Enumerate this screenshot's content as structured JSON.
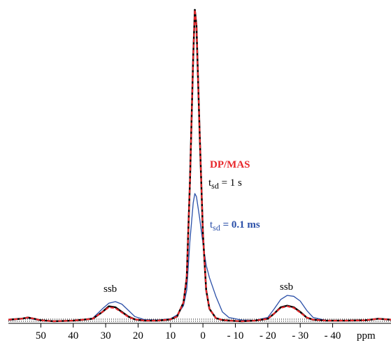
{
  "chart_data": {
    "type": "line",
    "x_label": "ppm",
    "x": [
      60,
      56,
      54,
      52,
      50,
      46,
      40,
      34,
      31,
      29,
      27,
      25,
      23,
      21,
      18,
      14,
      10,
      8,
      6,
      5,
      4,
      3,
      2.5,
      2,
      1,
      0,
      -1,
      -2,
      -4,
      -6,
      -8,
      -12,
      -16,
      -20,
      -22,
      -24,
      -26,
      -28,
      -30,
      -32,
      -34,
      -38,
      -44,
      -50,
      -54,
      -58
    ],
    "series": [
      {
        "key": "blue",
        "name_parts": [
          "t",
          "sd",
          " = 0.1 ms"
        ],
        "color": "#2a4fa8",
        "style": "solid",
        "values": [
          0.3,
          0.8,
          1.0,
          0.6,
          0.3,
          0,
          0.2,
          1.0,
          4,
          5.8,
          6.3,
          5.5,
          3.5,
          1.5,
          0.5,
          0.4,
          0.8,
          2,
          5,
          10,
          26,
          38,
          41,
          40,
          33,
          25,
          18,
          14,
          8,
          3,
          1.2,
          0.4,
          0.3,
          1.2,
          4,
          7,
          8.3,
          8,
          6.5,
          3.5,
          1.2,
          0.3,
          0.2,
          0.3,
          0.8,
          0.5
        ]
      },
      {
        "key": "black",
        "name_parts": [
          "t",
          "sd",
          " = 1 s"
        ],
        "color": "#000000",
        "style": "solid",
        "values": [
          0.5,
          0.8,
          1.2,
          0.8,
          0.3,
          0,
          0.2,
          0.8,
          3,
          4.8,
          4.5,
          3,
          1.5,
          0.6,
          0.2,
          0.2,
          0.6,
          1.5,
          6,
          14,
          45,
          85,
          100,
          95,
          60,
          28,
          10,
          4,
          1,
          0.4,
          0.2,
          0,
          0.2,
          0.8,
          2.5,
          4.5,
          5,
          4.5,
          3,
          1.2,
          0.5,
          0.2,
          0.2,
          0.3,
          0.8,
          0.5
        ]
      },
      {
        "key": "red",
        "name": "DP/MAS",
        "color": "#e8262a",
        "style": "dashed",
        "values": [
          0.5,
          0.8,
          1.2,
          0.8,
          0.3,
          0,
          0.2,
          0.8,
          3,
          4.5,
          4.2,
          2.8,
          1.4,
          0.6,
          0.2,
          0.2,
          0.6,
          1.5,
          6,
          14,
          45,
          85,
          100,
          95,
          60,
          28,
          10,
          4,
          1,
          0.4,
          0.2,
          0,
          0.2,
          0.8,
          2.5,
          4.3,
          4.8,
          4.3,
          2.8,
          1.2,
          0.5,
          0.2,
          0.2,
          0.3,
          0.8,
          0.5
        ]
      }
    ],
    "annotations": [
      "ssb",
      "ssb"
    ],
    "xlim": [
      60,
      -58
    ],
    "ylim": [
      0,
      100
    ],
    "xticks": [
      50,
      40,
      30,
      20,
      10,
      0,
      {
        "value": -10,
        "label": "- 10"
      },
      {
        "value": -20,
        "label": "- 20"
      },
      {
        "value": -30,
        "label": "- 30"
      },
      {
        "value": -40,
        "label": "- 40"
      }
    ]
  }
}
